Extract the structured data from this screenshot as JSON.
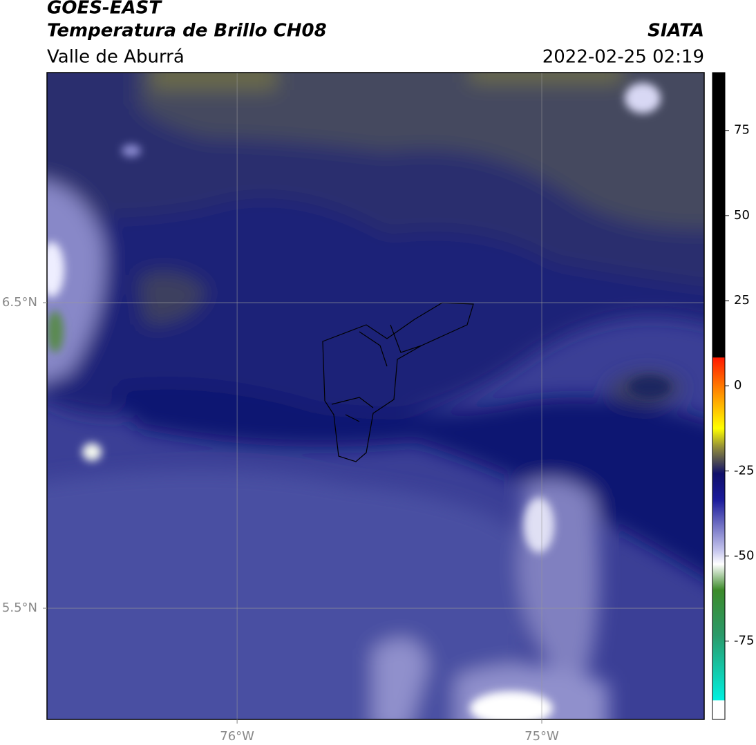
{
  "header": {
    "title": "GOES-EAST",
    "subtitle": "Temperatura de Brillo CH08",
    "region": "Valle de Aburrá",
    "source": "SIATA",
    "datetime": "2022-02-25 02:19"
  },
  "map": {
    "xlim": [
      -76.624,
      -74.467
    ],
    "ylim": [
      5.136,
      7.253
    ],
    "xticks": [
      {
        "value": -76,
        "label": "76°W"
      },
      {
        "value": -75,
        "label": "75°W"
      }
    ],
    "yticks": [
      {
        "value": 6.5,
        "label": "6.5°N"
      },
      {
        "value": 5.5,
        "label": "5.5°N"
      }
    ],
    "grid": true
  },
  "colorbar": {
    "lim": [
      -98,
      92
    ],
    "ticks": [
      75,
      50,
      25,
      0,
      -25,
      -50,
      -75
    ]
  }
}
